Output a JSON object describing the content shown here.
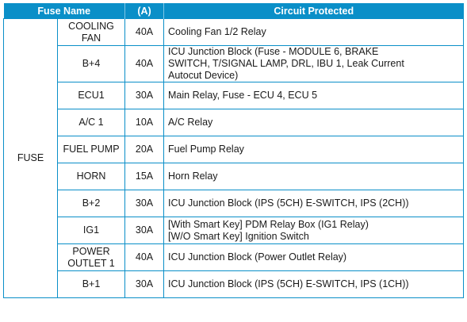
{
  "header": {
    "fuse_name": "Fuse Name",
    "amp": "(A)",
    "circuit": "Circuit Protected"
  },
  "group_label": "FUSE",
  "rows": [
    {
      "name_line1": "COOLING",
      "name_line2": "FAN",
      "amp": "40A",
      "circuit_line1": "Cooling Fan 1/2 Relay",
      "circuit_line2": "",
      "circuit_line3": ""
    },
    {
      "name_line1": "B+4",
      "name_line2": "",
      "amp": "40A",
      "circuit_line1": "ICU Junction Block (Fuse - MODULE 6, BRAKE",
      "circuit_line2": "SWITCH, T/SIGNAL LAMP, DRL, IBU 1, Leak Current",
      "circuit_line3": "Autocut Device)"
    },
    {
      "name_line1": "ECU1",
      "name_line2": "",
      "amp": "30A",
      "circuit_line1": "Main Relay, Fuse - ECU 4, ECU 5",
      "circuit_line2": "",
      "circuit_line3": ""
    },
    {
      "name_line1": "A/C 1",
      "name_line2": "",
      "amp": "10A",
      "circuit_line1": "A/C Relay",
      "circuit_line2": "",
      "circuit_line3": ""
    },
    {
      "name_line1": "FUEL PUMP",
      "name_line2": "",
      "amp": "20A",
      "circuit_line1": "Fuel Pump Relay",
      "circuit_line2": "",
      "circuit_line3": ""
    },
    {
      "name_line1": "HORN",
      "name_line2": "",
      "amp": "15A",
      "circuit_line1": "Horn Relay",
      "circuit_line2": "",
      "circuit_line3": ""
    },
    {
      "name_line1": "B+2",
      "name_line2": "",
      "amp": "30A",
      "circuit_line1": "ICU Junction Block (IPS (5CH) E-SWITCH, IPS (2CH))",
      "circuit_line2": "",
      "circuit_line3": ""
    },
    {
      "name_line1": "IG1",
      "name_line2": "",
      "amp": "30A",
      "circuit_line1": "[With Smart Key] PDM Relay Box (IG1 Relay)",
      "circuit_line2": "[W/O Smart Key] Ignition Switch",
      "circuit_line3": ""
    },
    {
      "name_line1": "POWER",
      "name_line2": "OUTLET 1",
      "amp": "40A",
      "circuit_line1": "ICU Junction Block (Power Outlet Relay)",
      "circuit_line2": "",
      "circuit_line3": ""
    },
    {
      "name_line1": "B+1",
      "name_line2": "",
      "amp": "30A",
      "circuit_line1": "ICU Junction Block (IPS (5CH) E-SWITCH, IPS (1CH))",
      "circuit_line2": "",
      "circuit_line3": ""
    }
  ]
}
